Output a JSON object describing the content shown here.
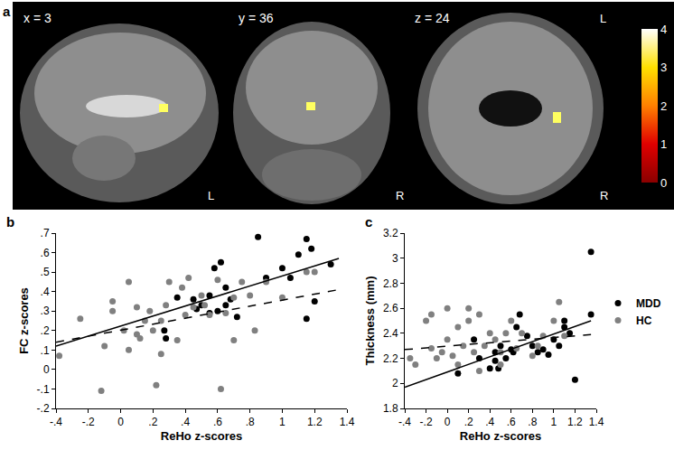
{
  "chart_data": [
    {
      "panel": "a",
      "type": "image",
      "slice_labels": [
        "x = 3",
        "y = 36",
        "z = 24"
      ],
      "orientation_labels": [
        [
          "L"
        ],
        [
          "R"
        ],
        [
          "L",
          "R"
        ]
      ],
      "colorbar": {
        "range": [
          0,
          4
        ],
        "ticks": [
          0,
          1,
          2,
          3,
          4
        ]
      }
    },
    {
      "panel": "b",
      "type": "scatter",
      "xlabel": "ReHo z-scores",
      "ylabel": "FC z-scores",
      "grid": false,
      "xlim": [
        -0.4,
        1.4
      ],
      "xticks": [
        {
          "value": -0.4,
          "label": "-.4"
        },
        {
          "value": -0.2,
          "label": "-.2"
        },
        0,
        {
          "value": 0.2,
          "label": ".2"
        },
        {
          "value": 0.4,
          "label": ".4"
        },
        {
          "value": 0.6,
          "label": ".6"
        },
        {
          "value": 0.8,
          "label": ".8"
        },
        1,
        1.2,
        1.4
      ],
      "ylim": [
        -0.2,
        0.7
      ],
      "yticks": [
        {
          "value": -0.2,
          "label": "-.2"
        },
        {
          "value": -0.1,
          "label": "-.1"
        },
        0,
        {
          "value": 0.1,
          "label": ".1"
        },
        {
          "value": 0.2,
          "label": ".2"
        },
        {
          "value": 0.3,
          "label": ".3"
        },
        {
          "value": 0.4,
          "label": ".4"
        },
        {
          "value": 0.5,
          "label": ".5"
        },
        {
          "value": 0.6,
          "label": ".6"
        },
        {
          "value": 0.7,
          "label": ".7"
        }
      ],
      "series": [
        {
          "name": "MDD",
          "type": "scatter",
          "color": "#000000",
          "marker": "circle",
          "x": [
            0.27,
            0.28,
            0.35,
            0.45,
            0.47,
            0.5,
            0.55,
            0.55,
            0.58,
            0.6,
            0.62,
            0.65,
            0.65,
            0.68,
            0.72,
            0.85,
            0.9,
            1.0,
            1.05,
            1.1,
            1.15,
            1.18,
            1.2,
            1.15,
            1.3
          ],
          "values": [
            0.2,
            0.16,
            0.37,
            0.36,
            0.31,
            0.33,
            0.29,
            0.38,
            0.52,
            0.3,
            0.55,
            0.33,
            0.42,
            0.36,
            0.27,
            0.68,
            0.47,
            0.52,
            0.47,
            0.59,
            0.67,
            0.62,
            0.35,
            0.26,
            0.54
          ]
        },
        {
          "name": "HC",
          "type": "scatter",
          "color": "#808080",
          "marker": "circle",
          "x": [
            -0.38,
            -0.25,
            -0.12,
            -0.1,
            -0.05,
            -0.05,
            0.02,
            0.05,
            0.05,
            0.1,
            0.1,
            0.12,
            0.15,
            0.18,
            0.2,
            0.22,
            0.25,
            0.25,
            0.28,
            0.3,
            0.35,
            0.38,
            0.4,
            0.42,
            0.45,
            0.5,
            0.52,
            0.55,
            0.6,
            0.62,
            0.65,
            0.7,
            0.7,
            0.75,
            0.8,
            0.83,
            0.9,
            1.0,
            1.15,
            1.2
          ],
          "values": [
            0.07,
            0.26,
            -0.11,
            0.12,
            0.35,
            0.3,
            0.2,
            0.1,
            0.45,
            0.18,
            0.32,
            0.16,
            0.25,
            0.3,
            0.2,
            -0.08,
            0.08,
            0.25,
            0.33,
            0.45,
            0.15,
            0.42,
            0.28,
            0.47,
            0.32,
            0.38,
            0.33,
            0.28,
            0.46,
            -0.1,
            0.29,
            0.37,
            0.15,
            0.45,
            0.38,
            0.2,
            0.45,
            0.37,
            0.5,
            0.5
          ]
        },
        {
          "type": "line",
          "color": "#000000",
          "line_style": "solid",
          "x": [
            -0.4,
            1.35
          ],
          "values": [
            0.12,
            0.57
          ]
        },
        {
          "type": "line",
          "color": "#000000",
          "line_style": "dashed",
          "x": [
            -0.4,
            1.35
          ],
          "values": [
            0.14,
            0.41
          ]
        }
      ]
    },
    {
      "panel": "c",
      "type": "scatter",
      "xlabel": "ReHo z-scores",
      "ylabel": "Thickness (mm)",
      "grid": false,
      "legend": "right",
      "xlim": [
        -0.4,
        1.4
      ],
      "xticks": [
        {
          "value": -0.4,
          "label": "-.4"
        },
        {
          "value": -0.2,
          "label": "-.2"
        },
        0,
        {
          "value": 0.2,
          "label": ".2"
        },
        {
          "value": 0.4,
          "label": ".4"
        },
        {
          "value": 0.6,
          "label": ".6"
        },
        {
          "value": 0.8,
          "label": ".8"
        },
        1,
        1.2,
        1.4
      ],
      "ylim": [
        1.8,
        3.2
      ],
      "yticks": [
        1.8,
        2,
        2.2,
        2.4,
        2.6,
        2.8,
        3,
        3.2
      ],
      "series": [
        {
          "name": "MDD",
          "type": "scatter",
          "color": "#000000",
          "marker": "circle",
          "x": [
            1.35,
            1.35,
            1.2,
            1.15,
            1.1,
            1.1,
            1.05,
            1.0,
            0.95,
            0.9,
            0.85,
            0.8,
            0.75,
            0.68,
            0.65,
            0.62,
            0.6,
            0.55,
            0.5,
            0.48,
            0.45,
            0.45,
            0.4,
            0.3,
            0.25,
            0.1
          ],
          "values": [
            3.05,
            2.55,
            2.03,
            2.4,
            2.5,
            2.45,
            2.3,
            2.35,
            2.23,
            2.27,
            2.25,
            2.3,
            2.38,
            2.55,
            2.45,
            2.25,
            2.27,
            2.2,
            2.3,
            2.12,
            2.18,
            2.25,
            2.12,
            2.2,
            2.35,
            2.08
          ]
        },
        {
          "name": "HC",
          "type": "scatter",
          "color": "#808080",
          "marker": "circle",
          "x": [
            -0.35,
            -0.3,
            -0.2,
            -0.15,
            -0.15,
            -0.1,
            -0.05,
            0.0,
            0.0,
            0.05,
            0.1,
            0.1,
            0.15,
            0.2,
            0.2,
            0.25,
            0.3,
            0.35,
            0.4,
            0.45,
            0.5,
            0.55,
            0.6,
            0.65,
            0.7,
            0.8,
            0.85,
            0.9,
            1.0,
            1.05,
            1.1,
            0.3,
            0.5
          ],
          "values": [
            2.2,
            2.15,
            2.5,
            2.55,
            2.28,
            2.2,
            2.25,
            2.35,
            2.6,
            2.22,
            2.15,
            2.45,
            2.3,
            2.5,
            2.6,
            2.25,
            2.55,
            2.3,
            2.4,
            2.35,
            2.25,
            2.4,
            2.5,
            2.28,
            2.4,
            2.22,
            2.3,
            2.38,
            2.5,
            2.65,
            2.38,
            2.1,
            2.15
          ]
        },
        {
          "type": "line",
          "color": "#000000",
          "line_style": "solid",
          "x": [
            -0.4,
            1.35
          ],
          "values": [
            1.97,
            2.5
          ]
        },
        {
          "type": "line",
          "color": "#000000",
          "line_style": "dashed",
          "x": [
            -0.4,
            1.35
          ],
          "values": [
            2.27,
            2.39
          ]
        }
      ]
    }
  ]
}
